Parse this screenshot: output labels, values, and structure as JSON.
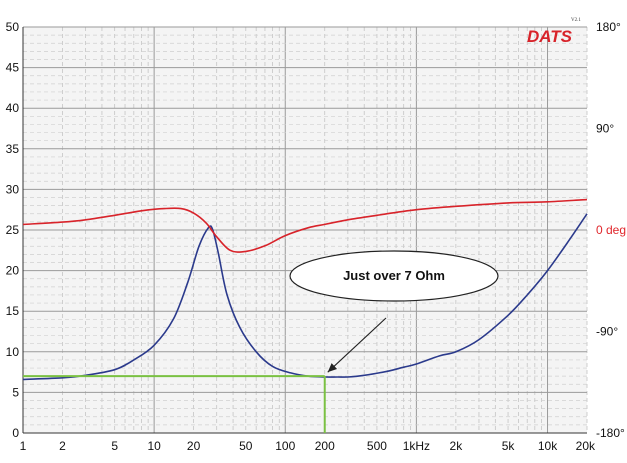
{
  "chart_data": {
    "type": "line",
    "title": "",
    "xlabel": "",
    "ylabel": "",
    "x_scale": "log",
    "xlim": [
      1,
      20000
    ],
    "ylim": [
      0,
      50
    ],
    "x_ticks": [
      {
        "v": 1,
        "label": "1"
      },
      {
        "v": 2,
        "label": "2"
      },
      {
        "v": 5,
        "label": "5"
      },
      {
        "v": 10,
        "label": "10"
      },
      {
        "v": 20,
        "label": "20"
      },
      {
        "v": 50,
        "label": "50"
      },
      {
        "v": 100,
        "label": "100"
      },
      {
        "v": 200,
        "label": "200"
      },
      {
        "v": 500,
        "label": "500"
      },
      {
        "v": 1000,
        "label": "1kHz"
      },
      {
        "v": 2000,
        "label": "2k"
      },
      {
        "v": 5000,
        "label": "5k"
      },
      {
        "v": 10000,
        "label": "10k"
      },
      {
        "v": 20000,
        "label": "20k"
      }
    ],
    "y_ticks": [
      0,
      5,
      10,
      15,
      20,
      25,
      30,
      35,
      40,
      45,
      50
    ],
    "phase_axis": {
      "range": [
        -180,
        180
      ],
      "ticks": [
        {
          "v": 180,
          "label": "180°",
          "highlight": false
        },
        {
          "v": 90,
          "label": "90°",
          "highlight": false
        },
        {
          "v": 0,
          "label": "0 deg",
          "highlight": true
        },
        {
          "v": -90,
          "label": "-90°",
          "highlight": false
        },
        {
          "v": -180,
          "label": "-180°",
          "highlight": false
        }
      ]
    },
    "grid": true,
    "series": [
      {
        "role": "impedance",
        "axis": "left",
        "color": "#2b3a8c",
        "points": [
          [
            1,
            6.6
          ],
          [
            2,
            6.8
          ],
          [
            3,
            7.1
          ],
          [
            5,
            7.8
          ],
          [
            7,
            9.0
          ],
          [
            10,
            10.8
          ],
          [
            14,
            14.0
          ],
          [
            18,
            18.5
          ],
          [
            22,
            23.0
          ],
          [
            26,
            25.3
          ],
          [
            28,
            25.0
          ],
          [
            31,
            22.0
          ],
          [
            36,
            17.0
          ],
          [
            45,
            13.0
          ],
          [
            60,
            10.0
          ],
          [
            80,
            8.2
          ],
          [
            110,
            7.4
          ],
          [
            150,
            7.0
          ],
          [
            200,
            6.9
          ],
          [
            250,
            6.9
          ],
          [
            300,
            6.9
          ],
          [
            400,
            7.1
          ],
          [
            600,
            7.6
          ],
          [
            800,
            8.1
          ],
          [
            1000,
            8.5
          ],
          [
            1500,
            9.5
          ],
          [
            2000,
            10.0
          ],
          [
            3000,
            11.5
          ],
          [
            5000,
            14.5
          ],
          [
            7000,
            17.0
          ],
          [
            10000,
            20.0
          ],
          [
            15000,
            24.0
          ],
          [
            20000,
            27.0
          ]
        ]
      },
      {
        "role": "phase",
        "axis": "right",
        "color": "#d8232a",
        "points": [
          [
            1,
            5
          ],
          [
            2,
            7
          ],
          [
            3,
            9
          ],
          [
            5,
            13
          ],
          [
            8,
            17
          ],
          [
            12,
            19
          ],
          [
            16,
            19
          ],
          [
            20,
            15
          ],
          [
            25,
            6
          ],
          [
            30,
            -6
          ],
          [
            38,
            -18
          ],
          [
            50,
            -19
          ],
          [
            70,
            -14
          ],
          [
            100,
            -5
          ],
          [
            150,
            2
          ],
          [
            200,
            5
          ],
          [
            300,
            9
          ],
          [
            500,
            13
          ],
          [
            1000,
            18
          ],
          [
            2000,
            21
          ],
          [
            5000,
            24
          ],
          [
            10000,
            25
          ],
          [
            20000,
            27
          ]
        ]
      }
    ],
    "annotations": [
      {
        "text": "Just over 7 Ohm",
        "at": [
          200,
          7.0
        ]
      }
    ],
    "reference_lines": [
      {
        "type": "horizontal",
        "y": 7.0,
        "color": "#7ac142"
      },
      {
        "type": "vertical",
        "x": 200,
        "color": "#7ac142"
      }
    ]
  },
  "branding": {
    "logo_text": "DATS",
    "logo_version": "V2.1"
  }
}
